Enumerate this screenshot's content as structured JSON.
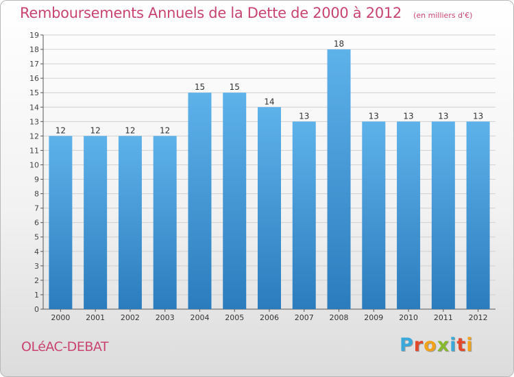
{
  "header": {
    "title": "Remboursements Annuels de la Dette de 2000 à 2012",
    "unit": "(en milliers d'€)"
  },
  "footer": {
    "town": "OLéAC-DEBAT",
    "brand_letters": [
      "P",
      "r",
      "o",
      "x",
      "i",
      "t",
      "i"
    ],
    "brand_colors": [
      "#3aa8d8",
      "#e2492c",
      "#f0a21a",
      "#87b92f",
      "#3aa8d8",
      "#e2492c",
      "#f0a21a"
    ]
  },
  "chart_data": {
    "type": "bar",
    "categories": [
      "2000",
      "2001",
      "2002",
      "2003",
      "2004",
      "2005",
      "2006",
      "2007",
      "2008",
      "2009",
      "2010",
      "2011",
      "2012"
    ],
    "values": [
      12,
      12,
      12,
      12,
      15,
      15,
      14,
      13,
      18,
      13,
      13,
      13,
      13
    ],
    "data_labels": [
      "12",
      "12",
      "12",
      "12",
      "15",
      "15",
      "14",
      "13",
      "18",
      "13",
      "13",
      "13",
      "13"
    ],
    "ylim": [
      0,
      19
    ],
    "yticks": [
      "0",
      "1",
      "2",
      "3",
      "4",
      "5",
      "6",
      "7",
      "8",
      "9",
      "10",
      "11",
      "12",
      "13",
      "14",
      "15",
      "16",
      "17",
      "18",
      "19"
    ],
    "grid": true,
    "bar_color_top": "#5eb2ea",
    "bar_color_bottom": "#2b7cbd",
    "grid_color": "#d0d0d0"
  }
}
